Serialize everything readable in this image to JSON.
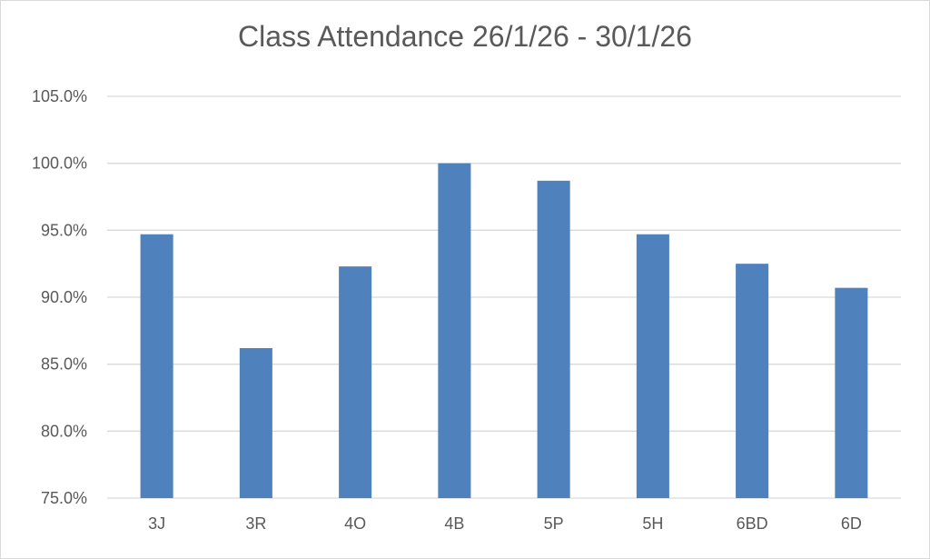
{
  "chart_data": {
    "type": "bar",
    "title": "Class Attendance 26/1/26 - 30/1/26",
    "categories": [
      "3J",
      "3R",
      "4O",
      "4B",
      "5P",
      "5H",
      "6BD",
      "6D"
    ],
    "series": [
      {
        "values": [
          94.7,
          86.2,
          92.3,
          100.0,
          98.7,
          94.7,
          92.5,
          90.7
        ],
        "color": "#4f81bd"
      }
    ],
    "xlabel": "",
    "ylabel": "",
    "ylim": [
      75,
      105
    ],
    "yticks": [
      "75.0%",
      "80.0%",
      "85.0%",
      "90.0%",
      "95.0%",
      "100.0%",
      "105.0%"
    ],
    "grid": true,
    "legend": "none"
  }
}
